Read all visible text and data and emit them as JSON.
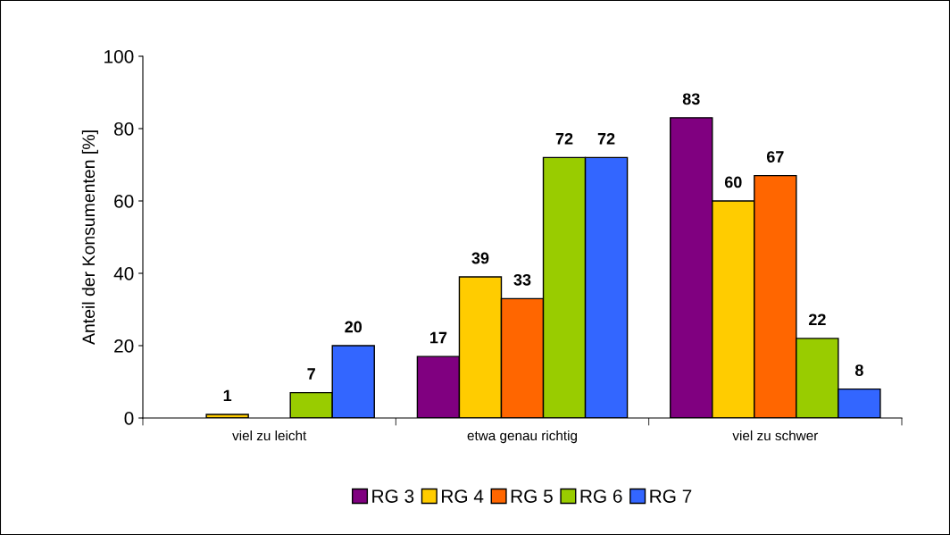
{
  "chart_data": {
    "type": "bar",
    "ylabel": "Anteil der Konsumenten [%]",
    "categories": [
      "viel zu leicht",
      "etwa genau richtig",
      "viel zu schwer"
    ],
    "series": [
      {
        "name": "RG 3",
        "color": "#800080",
        "values": [
          null,
          17,
          83
        ],
        "value_labels": [
          null,
          "17",
          "83"
        ]
      },
      {
        "name": "RG 4",
        "color": "#ffcc00",
        "values": [
          1,
          39,
          60
        ],
        "value_labels": [
          "1",
          "39",
          "60"
        ]
      },
      {
        "name": "RG 5",
        "color": "#ff6600",
        "values": [
          null,
          33,
          67
        ],
        "value_labels": [
          null,
          "33",
          "67"
        ]
      },
      {
        "name": "RG 6",
        "color": "#99cc00",
        "values": [
          7,
          72,
          22
        ],
        "value_labels": [
          "7",
          "72",
          "22"
        ]
      },
      {
        "name": "RG 7",
        "color": "#3366ff",
        "values": [
          20,
          72,
          8
        ],
        "value_labels": [
          "20",
          "72",
          "8"
        ]
      }
    ],
    "ylim": [
      0,
      100
    ],
    "yticks": [
      0,
      20,
      40,
      60,
      80,
      100
    ],
    "grid": false,
    "legend": "bottom"
  }
}
